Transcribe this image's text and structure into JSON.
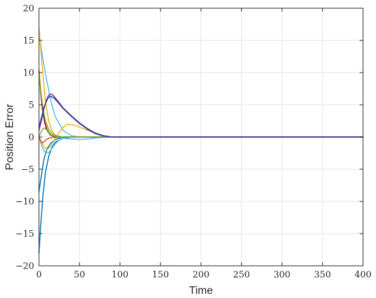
{
  "chart_data": {
    "type": "line",
    "title": "",
    "xlabel": "Time",
    "ylabel": "Position Error",
    "xlim": [
      0,
      400
    ],
    "ylim": [
      -20,
      20
    ],
    "xticks": [
      0,
      50,
      100,
      150,
      200,
      250,
      300,
      350,
      400
    ],
    "yticks": [
      20,
      15,
      10,
      5,
      0,
      -5,
      -10,
      -15,
      -20
    ],
    "xtick_labels": [
      "0",
      "50",
      "100",
      "150",
      "200",
      "250",
      "300",
      "350",
      "400"
    ],
    "ytick_labels": [
      "20",
      "15",
      "10",
      "5",
      "0",
      "−5",
      "−10",
      "−15",
      "−20"
    ],
    "grid": true,
    "legend": "none",
    "series": [
      {
        "color": "#0072bd",
        "x": [
          0,
          2,
          5,
          8,
          12,
          16,
          20,
          30,
          40,
          60,
          80,
          90,
          100,
          400
        ],
        "y": [
          -18,
          -14,
          -9,
          -5.5,
          -3,
          -1.6,
          -0.8,
          -0.2,
          0,
          0,
          0,
          0,
          0,
          0
        ]
      },
      {
        "color": "#0072bd",
        "x": [
          0,
          3,
          6,
          10,
          15,
          20,
          25,
          30,
          40,
          60,
          80,
          100,
          400
        ],
        "y": [
          -8.5,
          -6,
          -3.5,
          -1.8,
          -0.9,
          -0.4,
          -0.2,
          0,
          0,
          0,
          0,
          0,
          0
        ]
      },
      {
        "color": "#4dbeee",
        "x": [
          0,
          2,
          5,
          10,
          15,
          20,
          30,
          40,
          50,
          60,
          80,
          100,
          400
        ],
        "y": [
          16,
          14.5,
          12,
          8.5,
          5.5,
          3.2,
          1,
          0.2,
          0,
          0,
          0,
          0,
          0
        ]
      },
      {
        "color": "#4dbeee",
        "x": [
          0,
          4,
          8,
          12,
          16,
          20,
          25,
          30,
          40,
          50,
          60,
          70,
          80,
          90,
          100,
          400
        ],
        "y": [
          0,
          -1.6,
          -2.5,
          -2.4,
          -1.8,
          -1.1,
          -0.5,
          -0.2,
          -0.3,
          -0.4,
          -0.3,
          -0.15,
          -0.05,
          0,
          0,
          0
        ]
      },
      {
        "color": "#edb120",
        "x": [
          0,
          2,
          5,
          8,
          12,
          16,
          20,
          25,
          30,
          40,
          60,
          100,
          400
        ],
        "y": [
          17,
          14,
          9.5,
          5.5,
          2.5,
          1,
          0.3,
          0,
          0,
          0,
          0,
          0,
          0
        ]
      },
      {
        "color": "#edb120",
        "x": [
          0,
          3,
          6,
          10,
          15,
          20,
          25,
          30,
          35,
          45,
          55,
          65,
          75,
          85,
          95,
          100,
          400
        ],
        "y": [
          0,
          -0.8,
          -1.5,
          -2,
          -1.3,
          -0.2,
          0.7,
          1.5,
          2,
          1.8,
          1.3,
          0.8,
          0.3,
          0.05,
          0,
          0,
          0
        ]
      },
      {
        "color": "#d95319",
        "x": [
          0,
          2,
          4,
          7,
          10,
          14,
          20,
          30,
          60,
          100,
          400
        ],
        "y": [
          10.5,
          7.5,
          5,
          2.5,
          1.2,
          0.4,
          0,
          0,
          0,
          0,
          0
        ]
      },
      {
        "color": "#d95319",
        "x": [
          0,
          2,
          4,
          6,
          8,
          10,
          15,
          20,
          30,
          60,
          100,
          400
        ],
        "y": [
          0,
          -0.5,
          -0.9,
          -0.8,
          -0.5,
          -0.3,
          -0.1,
          0,
          0,
          0,
          0,
          0
        ]
      },
      {
        "color": "#a2142f",
        "x": [
          0,
          2,
          4,
          7,
          10,
          14,
          20,
          30,
          60,
          100,
          400
        ],
        "y": [
          10,
          7,
          4.5,
          2.2,
          1,
          0.3,
          0,
          0,
          0,
          0,
          0
        ]
      },
      {
        "color": "#77ac30",
        "x": [
          0,
          2,
          5,
          8,
          12,
          16,
          20,
          30,
          60,
          100,
          400
        ],
        "y": [
          10,
          7.2,
          4.5,
          2.5,
          1.2,
          0.5,
          0.2,
          0,
          0,
          0,
          0
        ]
      },
      {
        "color": "#77ac30",
        "x": [
          0,
          3,
          6,
          9,
          12,
          15,
          20,
          25,
          35,
          60,
          100,
          400
        ],
        "y": [
          0,
          0.9,
          1.4,
          1.2,
          0.7,
          0.3,
          0.1,
          0,
          0,
          0,
          0,
          0
        ]
      },
      {
        "color": "#7e2f8e",
        "x": [
          0,
          3,
          6,
          9,
          12,
          15,
          18,
          22,
          30,
          40,
          50,
          60,
          70,
          80,
          90,
          100,
          400
        ],
        "y": [
          1,
          2.5,
          4.3,
          5.7,
          6.5,
          6.7,
          6.4,
          5.8,
          4.5,
          3.3,
          2.2,
          1.3,
          0.6,
          0.2,
          0,
          0,
          0
        ]
      },
      {
        "color": "#2f3fa0",
        "x": [
          0,
          3,
          6,
          9,
          12,
          15,
          18,
          22,
          30,
          40,
          50,
          60,
          70,
          80,
          90,
          100,
          400
        ],
        "y": [
          1.5,
          3,
          4.5,
          5.5,
          6.2,
          6.3,
          6.1,
          5.6,
          4.4,
          3.2,
          2.1,
          1.2,
          0.5,
          0.15,
          0,
          0,
          0
        ]
      }
    ]
  }
}
